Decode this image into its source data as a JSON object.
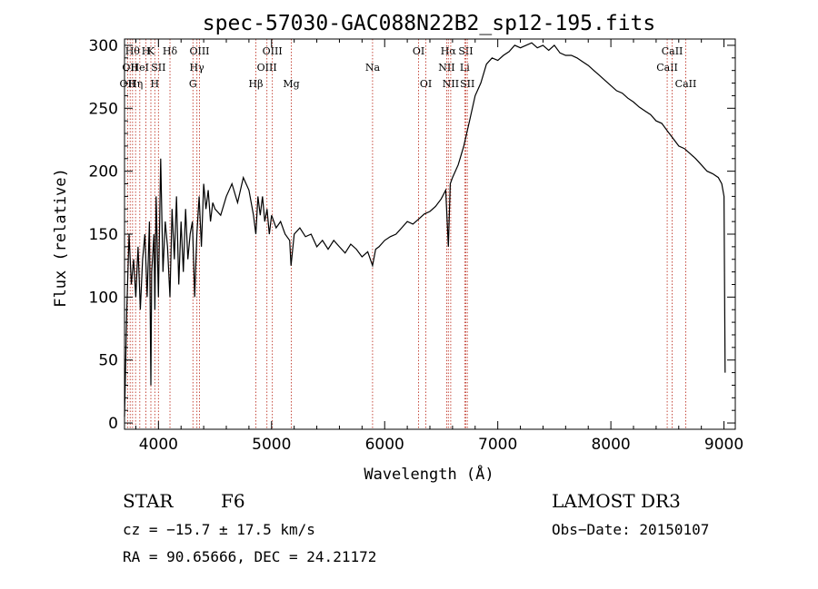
{
  "chart_data": {
    "type": "line",
    "title": "spec-57030-GAC088N22B2_sp12-195.fits",
    "xlabel": "Wavelength (Å)",
    "ylabel": "Flux (relative)",
    "xlim": [
      3700,
      9100
    ],
    "ylim": [
      -5,
      305
    ],
    "x_ticks": [
      4000,
      5000,
      6000,
      7000,
      8000,
      9000
    ],
    "y_ticks": [
      0,
      50,
      100,
      150,
      200,
      250,
      300
    ],
    "grid": false,
    "series": [
      {
        "x": [
          3700,
          3720,
          3740,
          3760,
          3780,
          3800,
          3820,
          3840,
          3860,
          3880,
          3900,
          3920,
          3933,
          3940,
          3960,
          3968,
          3980,
          4000,
          4020,
          4040,
          4060,
          4080,
          4102,
          4120,
          4140,
          4160,
          4180,
          4200,
          4220,
          4240,
          4260,
          4280,
          4300,
          4320,
          4340,
          4360,
          4380,
          4400,
          4420,
          4440,
          4460,
          4480,
          4500,
          4550,
          4600,
          4650,
          4700,
          4750,
          4800,
          4840,
          4861,
          4880,
          4900,
          4920,
          4940,
          4960,
          4980,
          5000,
          5040,
          5080,
          5120,
          5160,
          5172,
          5200,
          5250,
          5300,
          5350,
          5400,
          5450,
          5500,
          5550,
          5600,
          5650,
          5700,
          5750,
          5800,
          5850,
          5893,
          5920,
          5950,
          6000,
          6050,
          6100,
          6150,
          6200,
          6250,
          6300,
          6350,
          6400,
          6450,
          6500,
          6540,
          6563,
          6580,
          6600,
          6650,
          6700,
          6750,
          6800,
          6850,
          6900,
          6950,
          7000,
          7050,
          7100,
          7150,
          7200,
          7250,
          7300,
          7350,
          7400,
          7450,
          7500,
          7550,
          7600,
          7650,
          7700,
          7750,
          7800,
          7850,
          7900,
          7950,
          8000,
          8050,
          8100,
          8150,
          8200,
          8250,
          8300,
          8350,
          8400,
          8450,
          8500,
          8550,
          8600,
          8650,
          8700,
          8750,
          8800,
          8850,
          8900,
          8950,
          8980,
          9000,
          9010
        ],
        "values": [
          5,
          90,
          150,
          110,
          130,
          100,
          140,
          90,
          130,
          150,
          100,
          160,
          30,
          120,
          150,
          90,
          180,
          100,
          210,
          120,
          160,
          140,
          100,
          170,
          130,
          180,
          110,
          160,
          120,
          170,
          130,
          150,
          160,
          100,
          150,
          180,
          140,
          190,
          170,
          185,
          160,
          175,
          170,
          165,
          180,
          190,
          175,
          195,
          185,
          165,
          150,
          180,
          165,
          180,
          160,
          170,
          150,
          165,
          155,
          160,
          150,
          145,
          125,
          150,
          155,
          148,
          150,
          140,
          145,
          138,
          145,
          140,
          135,
          142,
          138,
          132,
          136,
          125,
          138,
          140,
          145,
          148,
          150,
          155,
          160,
          158,
          162,
          166,
          168,
          172,
          178,
          185,
          140,
          190,
          195,
          205,
          220,
          240,
          260,
          270,
          285,
          290,
          288,
          292,
          295,
          300,
          298,
          300,
          302,
          298,
          300,
          296,
          300,
          294,
          292,
          292,
          290,
          287,
          284,
          280,
          276,
          272,
          268,
          264,
          262,
          258,
          255,
          251,
          248,
          245,
          240,
          238,
          232,
          226,
          220,
          218,
          214,
          210,
          205,
          200,
          198,
          195,
          190,
          180,
          40
        ]
      }
    ],
    "line_markers": [
      {
        "wl": 3727,
        "label": "OII",
        "row": 2
      },
      {
        "wl": 3750,
        "label": "OII",
        "row": 1
      },
      {
        "wl": 3771,
        "label": "Hθ",
        "row": 0
      },
      {
        "wl": 3798,
        "label": "Hη",
        "row": 2
      },
      {
        "wl": 3835,
        "label": "HeI",
        "row": 1
      },
      {
        "wl": 3889,
        "label": "H",
        "row": 0
      },
      {
        "wl": 3933,
        "label": "K",
        "row": 0
      },
      {
        "wl": 3968,
        "label": "H",
        "row": 2
      },
      {
        "wl": 4000,
        "label": "SII",
        "row": 1
      },
      {
        "wl": 4102,
        "label": "Hδ",
        "row": 0
      },
      {
        "wl": 4305,
        "label": "G",
        "row": 2
      },
      {
        "wl": 4340,
        "label": "Hγ",
        "row": 1
      },
      {
        "wl": 4363,
        "label": "OIII",
        "row": 0
      },
      {
        "wl": 4861,
        "label": "Hβ",
        "row": 2
      },
      {
        "wl": 4959,
        "label": "OIII",
        "row": 1
      },
      {
        "wl": 5007,
        "label": "OIII",
        "row": 0
      },
      {
        "wl": 5175,
        "label": "Mg",
        "row": 2
      },
      {
        "wl": 5893,
        "label": "Na",
        "row": 1
      },
      {
        "wl": 6300,
        "label": "OI",
        "row": 0
      },
      {
        "wl": 6364,
        "label": "OI",
        "row": 2
      },
      {
        "wl": 6548,
        "label": "NII",
        "row": 1
      },
      {
        "wl": 6563,
        "label": "Hα",
        "row": 0
      },
      {
        "wl": 6584,
        "label": "NII",
        "row": 2
      },
      {
        "wl": 6708,
        "label": "Li",
        "row": 1
      },
      {
        "wl": 6717,
        "label": "SII",
        "row": 0
      },
      {
        "wl": 6731,
        "label": "SII",
        "row": 2
      },
      {
        "wl": 8498,
        "label": "CaII",
        "row": 1
      },
      {
        "wl": 8542,
        "label": "CaII",
        "row": 0
      },
      {
        "wl": 8662,
        "label": "CaII",
        "row": 2
      }
    ]
  },
  "info": {
    "class": "STAR",
    "subclass": "F6",
    "survey": "LAMOST DR3",
    "cz": "cz = −15.7 ± 17.5 km/s",
    "obs_date": "Obs−Date: 20150107",
    "radec": "RA =  90.65666, DEC =  24.21172"
  }
}
